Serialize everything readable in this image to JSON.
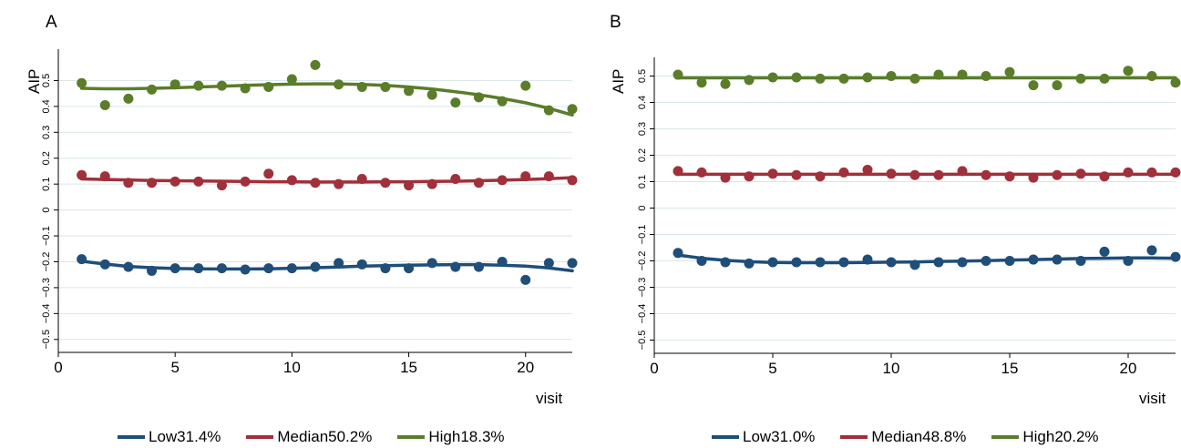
{
  "chart_data": [
    {
      "type": "scatter",
      "panel_label": "A",
      "xlabel": "visit",
      "ylabel": "AIP",
      "xlim": [
        0,
        22
      ],
      "ylim": [
        -0.55,
        0.6
      ],
      "x_ticks": [
        0,
        5,
        10,
        15,
        20
      ],
      "y_ticks": [
        -0.5,
        -0.4,
        -0.3,
        -0.2,
        -0.1,
        0,
        0.1,
        0.2,
        0.3,
        0.4,
        0.5
      ],
      "y_tick_labels": [
        "−0.5",
        "−0.4",
        "−0.3",
        "−0.2",
        "−0.1",
        "0",
        "0.1",
        "0.2",
        "0.3",
        "0.4",
        "0.5"
      ],
      "grid": "horizontal",
      "legend_position": "bottom",
      "x": [
        1,
        2,
        3,
        4,
        5,
        6,
        7,
        8,
        9,
        10,
        11,
        12,
        13,
        14,
        15,
        16,
        17,
        18,
        19,
        20,
        21,
        22
      ],
      "series": [
        {
          "name": "Low31.4%",
          "color": "#1f4e79",
          "values": [
            -0.19,
            -0.21,
            -0.22,
            -0.235,
            -0.225,
            -0.225,
            -0.225,
            -0.23,
            -0.225,
            -0.225,
            -0.22,
            -0.205,
            -0.21,
            -0.225,
            -0.225,
            -0.205,
            -0.22,
            -0.22,
            -0.2,
            -0.27,
            -0.205,
            -0.205
          ],
          "fit": [
            -0.198,
            -0.209,
            -0.218,
            -0.223,
            -0.226,
            -0.227,
            -0.228,
            -0.228,
            -0.227,
            -0.225,
            -0.223,
            -0.22,
            -0.217,
            -0.215,
            -0.213,
            -0.212,
            -0.211,
            -0.211,
            -0.213,
            -0.217,
            -0.224,
            -0.235
          ]
        },
        {
          "name": "Median50.2%",
          "color": "#a0303a",
          "values": [
            0.135,
            0.13,
            0.105,
            0.105,
            0.11,
            0.11,
            0.095,
            0.11,
            0.14,
            0.115,
            0.105,
            0.1,
            0.12,
            0.105,
            0.095,
            0.1,
            0.12,
            0.105,
            0.115,
            0.13,
            0.13,
            0.115
          ],
          "fit": [
            0.12,
            0.118,
            0.116,
            0.114,
            0.113,
            0.112,
            0.111,
            0.11,
            0.109,
            0.109,
            0.108,
            0.108,
            0.108,
            0.109,
            0.109,
            0.11,
            0.111,
            0.113,
            0.115,
            0.118,
            0.121,
            0.125
          ]
        },
        {
          "name": "High18.3%",
          "color": "#5a7d2a",
          "values": [
            0.49,
            0.405,
            0.43,
            0.465,
            0.485,
            0.48,
            0.48,
            0.47,
            0.475,
            0.505,
            0.56,
            0.485,
            0.475,
            0.475,
            0.46,
            0.445,
            0.415,
            0.435,
            0.42,
            0.48,
            0.385,
            0.39
          ],
          "fit": [
            0.47,
            0.468,
            0.468,
            0.47,
            0.472,
            0.475,
            0.478,
            0.481,
            0.484,
            0.486,
            0.487,
            0.487,
            0.485,
            0.481,
            0.475,
            0.467,
            0.457,
            0.445,
            0.431,
            0.414,
            0.393,
            0.367
          ]
        }
      ]
    },
    {
      "type": "scatter",
      "panel_label": "B",
      "xlabel": "visit",
      "ylabel": "AIP",
      "xlim": [
        0,
        22
      ],
      "ylim": [
        -0.55,
        0.55
      ],
      "x_ticks": [
        0,
        5,
        10,
        15,
        20
      ],
      "y_ticks": [
        -0.5,
        -0.4,
        -0.3,
        -0.2,
        -0.1,
        0,
        0.1,
        0.2,
        0.3,
        0.4,
        0.5
      ],
      "y_tick_labels": [
        "−0.5",
        "−0.4",
        "−0.3",
        "−0.2",
        "−0.1",
        "0",
        "0.1",
        "0.2",
        "0.3",
        "0.4",
        "0.5"
      ],
      "grid": "horizontal",
      "legend_position": "bottom",
      "x": [
        1,
        2,
        3,
        4,
        5,
        6,
        7,
        8,
        9,
        10,
        11,
        12,
        13,
        14,
        15,
        16,
        17,
        18,
        19,
        20,
        21,
        22
      ],
      "series": [
        {
          "name": "Low31.0%",
          "color": "#1f4e79",
          "values": [
            -0.17,
            -0.2,
            -0.205,
            -0.21,
            -0.205,
            -0.205,
            -0.205,
            -0.205,
            -0.195,
            -0.205,
            -0.215,
            -0.205,
            -0.205,
            -0.2,
            -0.2,
            -0.195,
            -0.195,
            -0.2,
            -0.165,
            -0.2,
            -0.16,
            -0.185
          ],
          "fit": [
            -0.178,
            -0.19,
            -0.198,
            -0.203,
            -0.206,
            -0.207,
            -0.207,
            -0.207,
            -0.206,
            -0.205,
            -0.204,
            -0.202,
            -0.201,
            -0.199,
            -0.197,
            -0.195,
            -0.193,
            -0.191,
            -0.19,
            -0.189,
            -0.189,
            -0.19
          ]
        },
        {
          "name": "Median48.8%",
          "color": "#a0303a",
          "values": [
            0.14,
            0.135,
            0.115,
            0.12,
            0.13,
            0.125,
            0.12,
            0.135,
            0.145,
            0.13,
            0.125,
            0.125,
            0.14,
            0.125,
            0.12,
            0.115,
            0.125,
            0.13,
            0.12,
            0.135,
            0.135,
            0.135
          ],
          "fit": [
            0.128,
            0.128,
            0.128,
            0.128,
            0.128,
            0.128,
            0.128,
            0.128,
            0.128,
            0.128,
            0.128,
            0.128,
            0.128,
            0.128,
            0.128,
            0.128,
            0.128,
            0.128,
            0.128,
            0.128,
            0.128,
            0.128
          ]
        },
        {
          "name": "High20.2%",
          "color": "#5a7d2a",
          "values": [
            0.505,
            0.475,
            0.47,
            0.485,
            0.495,
            0.495,
            0.49,
            0.49,
            0.495,
            0.5,
            0.49,
            0.505,
            0.505,
            0.5,
            0.515,
            0.465,
            0.465,
            0.49,
            0.49,
            0.52,
            0.5,
            0.475
          ],
          "fit": [
            0.493,
            0.493,
            0.493,
            0.493,
            0.493,
            0.493,
            0.493,
            0.493,
            0.493,
            0.493,
            0.493,
            0.493,
            0.493,
            0.493,
            0.493,
            0.493,
            0.493,
            0.493,
            0.493,
            0.493,
            0.493,
            0.493
          ]
        }
      ]
    }
  ]
}
